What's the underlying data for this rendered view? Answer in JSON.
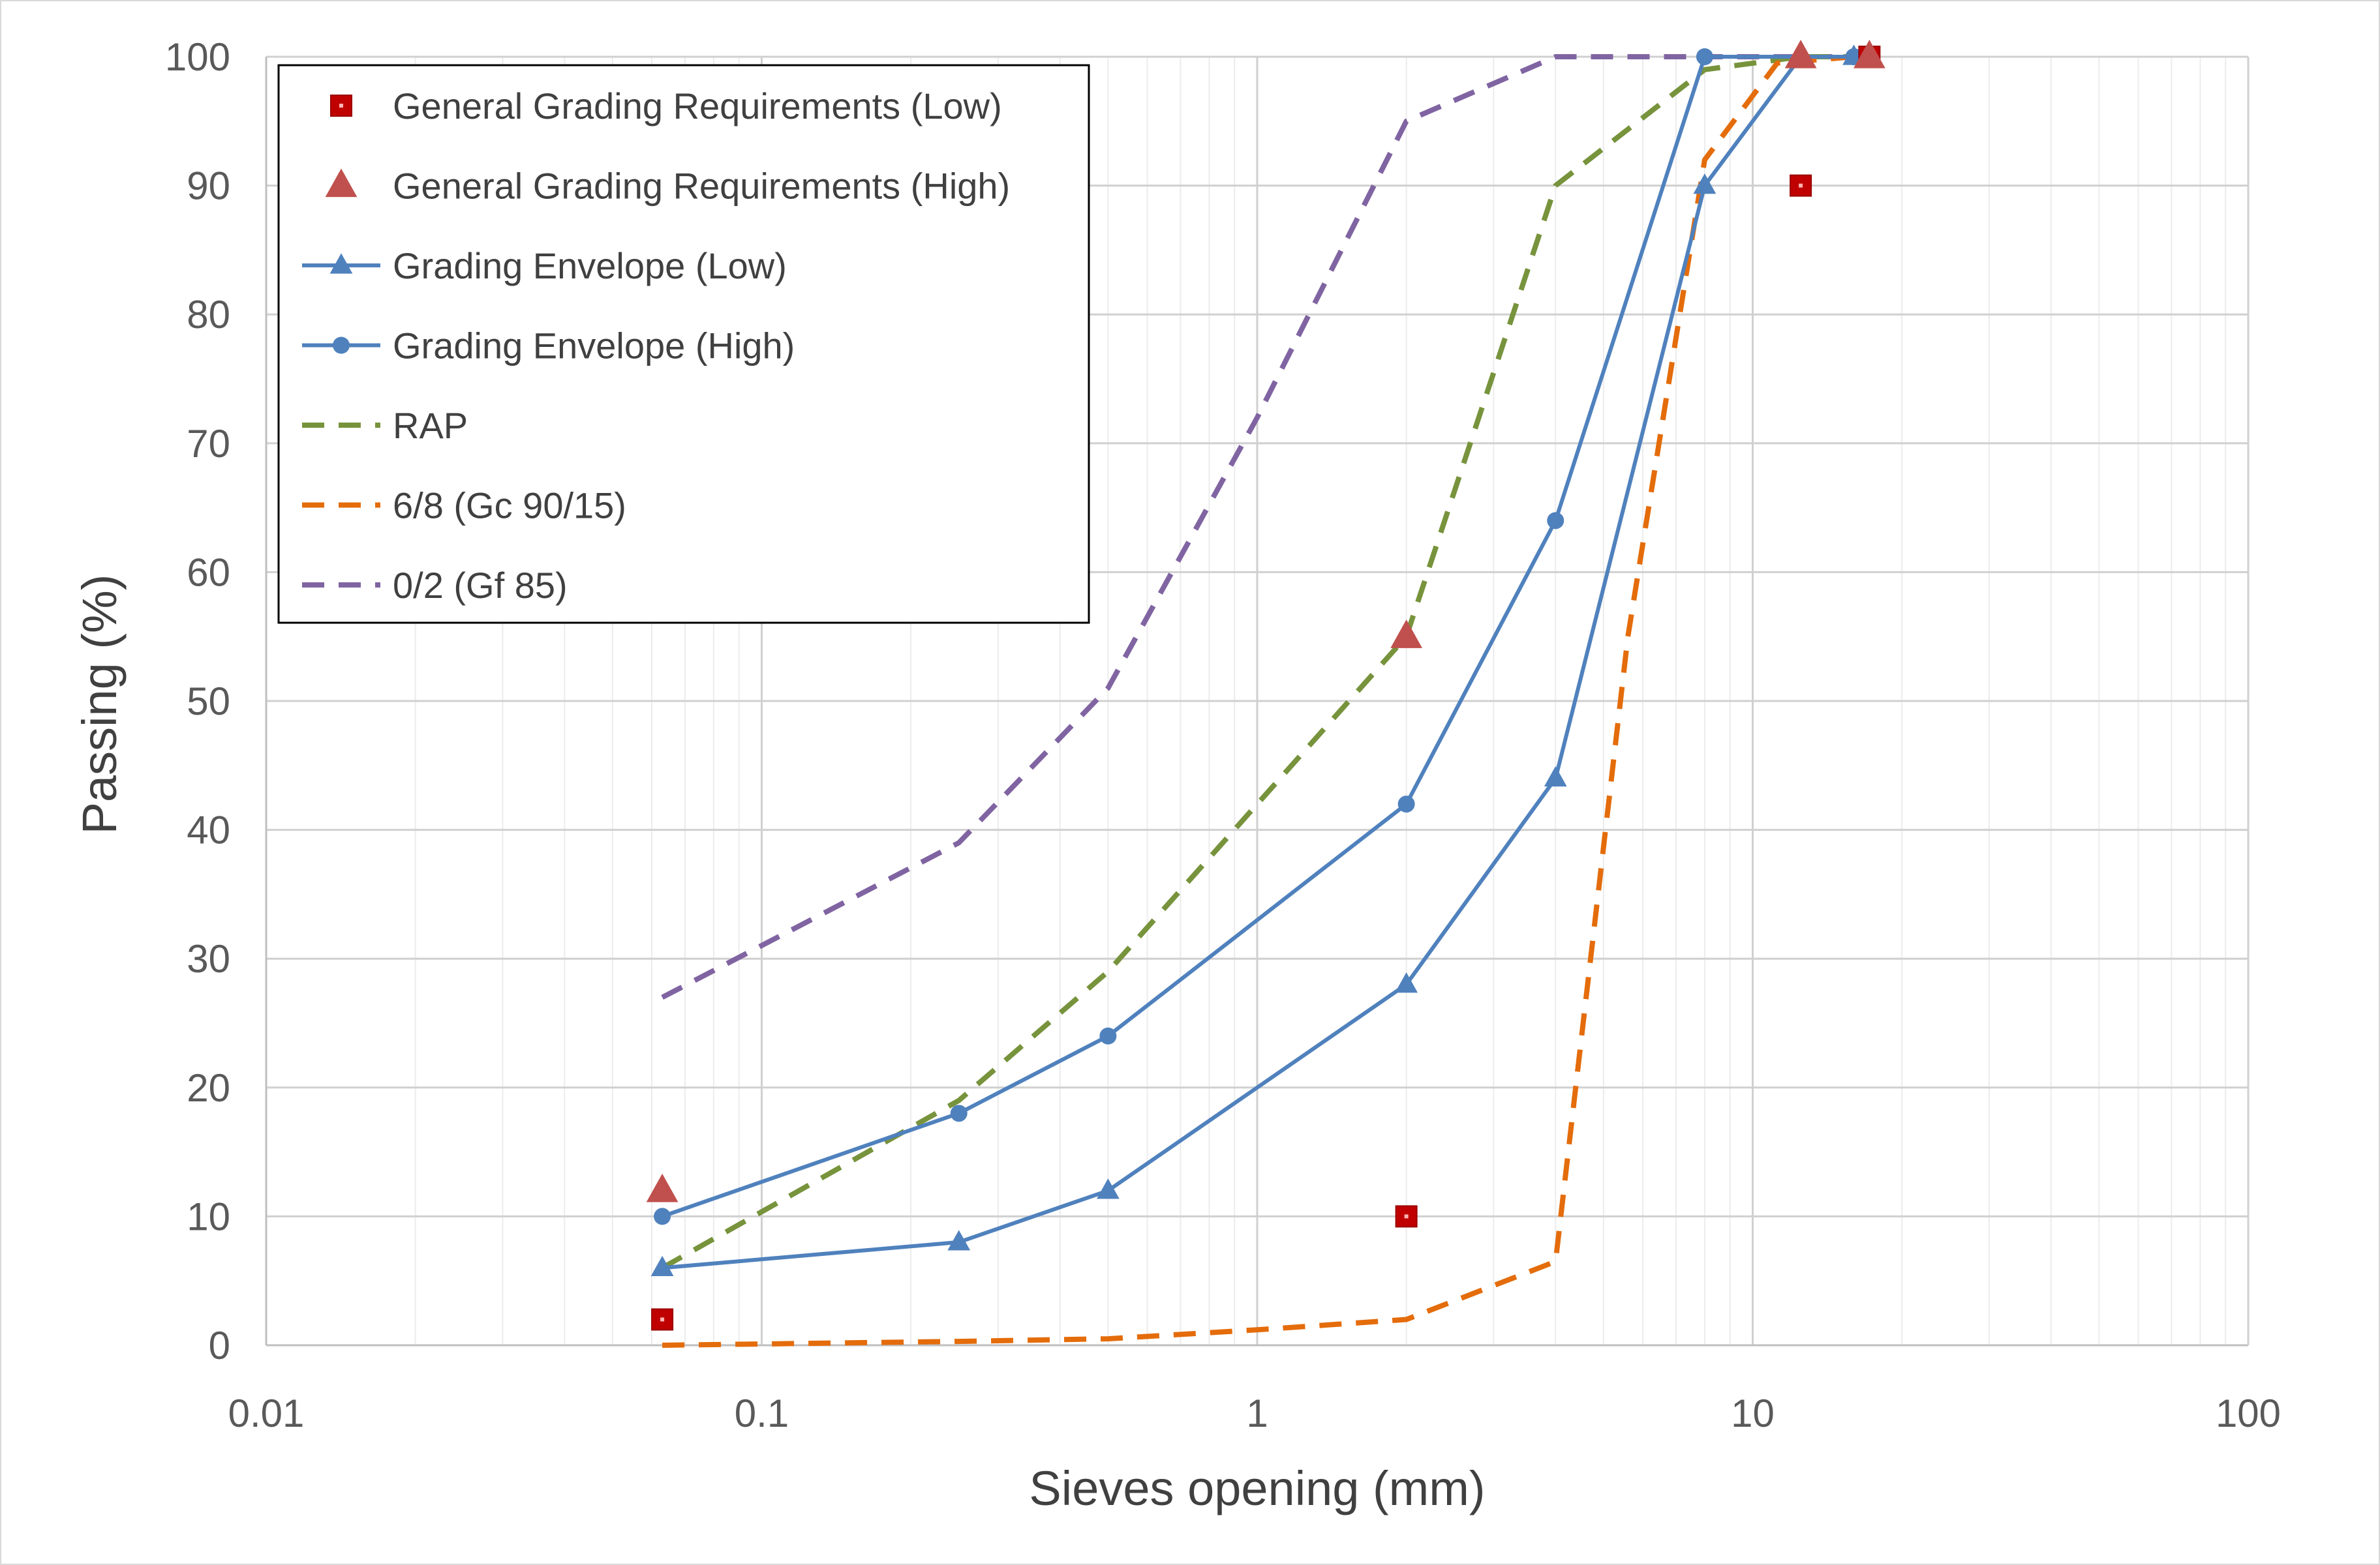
{
  "chart_data": {
    "type": "scatter",
    "title": "",
    "xlabel": "Sieves opening (mm)",
    "ylabel": "Passing (%)",
    "xscale": "log",
    "xlim": [
      0.01,
      100
    ],
    "ylim": [
      0,
      100
    ],
    "xticks": [
      0.01,
      0.1,
      1,
      10,
      100
    ],
    "xtick_labels": [
      "0.01",
      "0.1",
      "1",
      "10",
      "100"
    ],
    "yticks": [
      0,
      10,
      20,
      30,
      40,
      50,
      60,
      70,
      80,
      90,
      100
    ],
    "ytick_labels": [
      "0",
      "10",
      "20",
      "30",
      "40",
      "50",
      "60",
      "70",
      "80",
      "90",
      "100"
    ],
    "grid": true,
    "legend_position": "top-left",
    "series": [
      {
        "name": "General Grading Requirements (Low)",
        "kind": "markers",
        "marker": "square",
        "color": "#C00000",
        "x": [
          0.063,
          2,
          12.5,
          17.2
        ],
        "y": [
          2,
          10,
          90,
          100
        ]
      },
      {
        "name": "General Grading Requirements (High)",
        "kind": "markers",
        "marker": "triangle",
        "color": "#C0504D",
        "x": [
          0.063,
          2,
          12.5,
          17.2
        ],
        "y": [
          12,
          55,
          100,
          100
        ]
      },
      {
        "name": "Grading Envelope (Low)",
        "kind": "line",
        "marker": "triangle",
        "dash": "solid",
        "color": "#4F81BD",
        "x": [
          0.063,
          0.25,
          0.5,
          2,
          4,
          8,
          12.5,
          16
        ],
        "y": [
          6,
          8,
          12,
          28,
          44,
          90,
          100,
          100
        ]
      },
      {
        "name": "Grading Envelope (High)",
        "kind": "line",
        "marker": "circle",
        "dash": "solid",
        "color": "#4F81BD",
        "x": [
          0.063,
          0.25,
          0.5,
          2,
          4,
          8,
          16
        ],
        "y": [
          10,
          18,
          24,
          42,
          64,
          100,
          100
        ]
      },
      {
        "name": "RAP",
        "kind": "line",
        "marker": "none",
        "dash": "dashed",
        "color": "#77933C",
        "x": [
          0.063,
          0.25,
          0.5,
          2,
          4,
          8,
          12.5,
          16
        ],
        "y": [
          6,
          19,
          29,
          55,
          90,
          99,
          100,
          100
        ]
      },
      {
        "name": "6/8 (Gc 90/15)",
        "kind": "line",
        "marker": "none",
        "dash": "dashed",
        "color": "#E46C0A",
        "x": [
          0.063,
          0.25,
          0.5,
          1,
          2,
          4,
          5.6,
          8,
          11.2,
          16
        ],
        "y": [
          0,
          0.3,
          0.5,
          1.2,
          2,
          6.5,
          55,
          92,
          99.5,
          100
        ]
      },
      {
        "name": "0/2 (Gf 85)",
        "kind": "line",
        "marker": "none",
        "dash": "dashed",
        "color": "#8064A2",
        "x": [
          0.063,
          0.25,
          0.5,
          1,
          2,
          4,
          8,
          16
        ],
        "y": [
          27,
          39,
          51,
          72,
          95,
          100,
          100,
          100
        ]
      }
    ]
  }
}
